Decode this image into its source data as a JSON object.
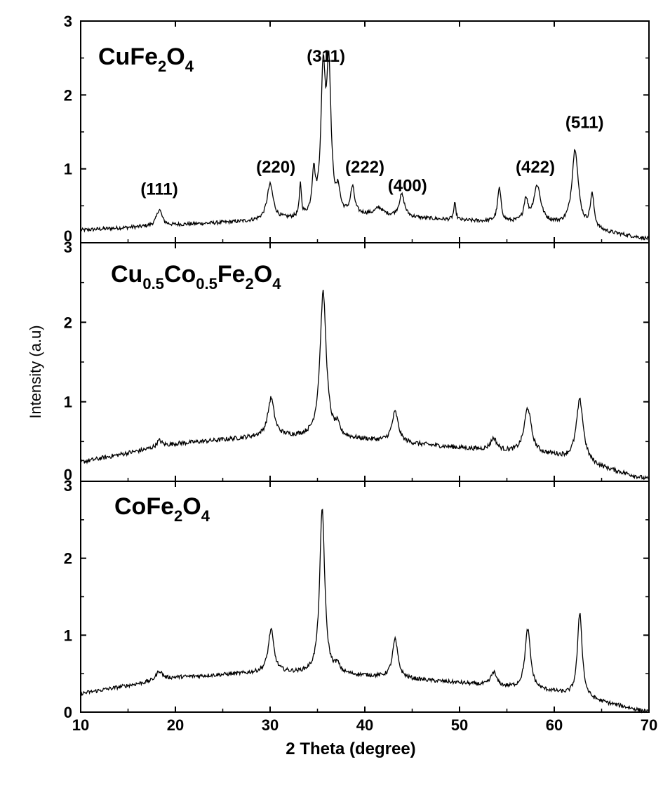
{
  "chart_data": {
    "type": "line",
    "xlabel": "2 Theta (degree)",
    "ylabel": "Intensity (a.u)",
    "xlim": [
      10,
      70
    ],
    "x_ticks": [
      "10",
      "20",
      "30",
      "40",
      "50",
      "60",
      "70"
    ],
    "ylim": [
      0,
      3
    ],
    "y_ticks": [
      "0",
      "1",
      "2",
      "3"
    ],
    "grid": false,
    "legend": "none",
    "series": [
      {
        "name": "CuFe2O4",
        "label_parts": [
          [
            "CuFe",
            false
          ],
          [
            "2",
            true
          ],
          [
            "O",
            false
          ],
          [
            "4",
            true
          ]
        ],
        "baseline": [
          [
            10,
            0.17
          ],
          [
            20,
            0.24
          ],
          [
            30,
            0.3
          ],
          [
            40,
            0.37
          ],
          [
            50,
            0.3
          ],
          [
            60,
            0.25
          ],
          [
            70,
            0.05
          ]
        ],
        "peaks": [
          {
            "x": 18.3,
            "h": 0.22,
            "w": 0.35
          },
          {
            "x": 30.0,
            "h": 0.48,
            "w": 0.4
          },
          {
            "x": 33.2,
            "h": 0.45,
            "w": 0.12
          },
          {
            "x": 34.6,
            "h": 0.55,
            "w": 0.2
          },
          {
            "x": 35.6,
            "h": 1.85,
            "w": 0.28
          },
          {
            "x": 36.2,
            "h": 1.9,
            "w": 0.28
          },
          {
            "x": 37.2,
            "h": 0.28,
            "w": 0.22
          },
          {
            "x": 38.7,
            "h": 0.36,
            "w": 0.26
          },
          {
            "x": 41.5,
            "h": 0.1,
            "w": 0.5
          },
          {
            "x": 43.9,
            "h": 0.3,
            "w": 0.35
          },
          {
            "x": 49.5,
            "h": 0.22,
            "w": 0.14
          },
          {
            "x": 54.2,
            "h": 0.45,
            "w": 0.22
          },
          {
            "x": 57.0,
            "h": 0.3,
            "w": 0.25
          },
          {
            "x": 58.2,
            "h": 0.5,
            "w": 0.45
          },
          {
            "x": 62.2,
            "h": 1.05,
            "w": 0.4
          },
          {
            "x": 64.0,
            "h": 0.45,
            "w": 0.25
          }
        ],
        "noise": 0.025
      },
      {
        "name": "Cu0.5Co0.5Fe2O4",
        "label_parts": [
          [
            "Cu",
            false
          ],
          [
            "0.5",
            true
          ],
          [
            "Co",
            false
          ],
          [
            "0.5",
            true
          ],
          [
            "Fe",
            false
          ],
          [
            "2",
            true
          ],
          [
            "O",
            false
          ],
          [
            "4",
            true
          ]
        ],
        "baseline": [
          [
            10,
            0.24
          ],
          [
            20,
            0.47
          ],
          [
            30,
            0.57
          ],
          [
            40,
            0.52
          ],
          [
            50,
            0.42
          ],
          [
            60,
            0.32
          ],
          [
            70,
            0.02
          ]
        ],
        "peaks": [
          {
            "x": 18.3,
            "h": 0.08,
            "w": 0.35
          },
          {
            "x": 30.1,
            "h": 0.47,
            "w": 0.4
          },
          {
            "x": 35.6,
            "h": 1.83,
            "w": 0.4
          },
          {
            "x": 37.1,
            "h": 0.12,
            "w": 0.3
          },
          {
            "x": 43.2,
            "h": 0.38,
            "w": 0.4
          },
          {
            "x": 53.6,
            "h": 0.15,
            "w": 0.4
          },
          {
            "x": 57.2,
            "h": 0.57,
            "w": 0.45
          },
          {
            "x": 62.7,
            "h": 0.78,
            "w": 0.45
          }
        ],
        "noise": 0.028
      },
      {
        "name": "CoFe2O4",
        "label_parts": [
          [
            "CoFe",
            false
          ],
          [
            "2",
            true
          ],
          [
            "O",
            false
          ],
          [
            "4",
            true
          ]
        ],
        "baseline": [
          [
            10,
            0.24
          ],
          [
            20,
            0.45
          ],
          [
            30,
            0.52
          ],
          [
            40,
            0.47
          ],
          [
            50,
            0.38
          ],
          [
            60,
            0.26
          ],
          [
            70,
            0.0
          ]
        ],
        "peaks": [
          {
            "x": 18.3,
            "h": 0.12,
            "w": 0.4
          },
          {
            "x": 30.1,
            "h": 0.55,
            "w": 0.35
          },
          {
            "x": 35.5,
            "h": 2.15,
            "w": 0.32
          },
          {
            "x": 37.1,
            "h": 0.1,
            "w": 0.3
          },
          {
            "x": 43.2,
            "h": 0.5,
            "w": 0.35
          },
          {
            "x": 53.6,
            "h": 0.18,
            "w": 0.35
          },
          {
            "x": 57.2,
            "h": 0.78,
            "w": 0.35
          },
          {
            "x": 62.7,
            "h": 1.1,
            "w": 0.3
          }
        ],
        "noise": 0.025
      }
    ],
    "annotations": [
      {
        "text": "(111)",
        "x": 18.3,
        "y": 0.65
      },
      {
        "text": "(220)",
        "x": 30.6,
        "y": 0.95
      },
      {
        "text": "(311)",
        "x": 35.9,
        "y": 2.45
      },
      {
        "text": "(222)",
        "x": 40.0,
        "y": 0.95
      },
      {
        "text": "(400)",
        "x": 44.5,
        "y": 0.7
      },
      {
        "text": "(422)",
        "x": 58.0,
        "y": 0.95
      },
      {
        "text": "(511)",
        "x": 63.2,
        "y": 1.55
      }
    ]
  }
}
